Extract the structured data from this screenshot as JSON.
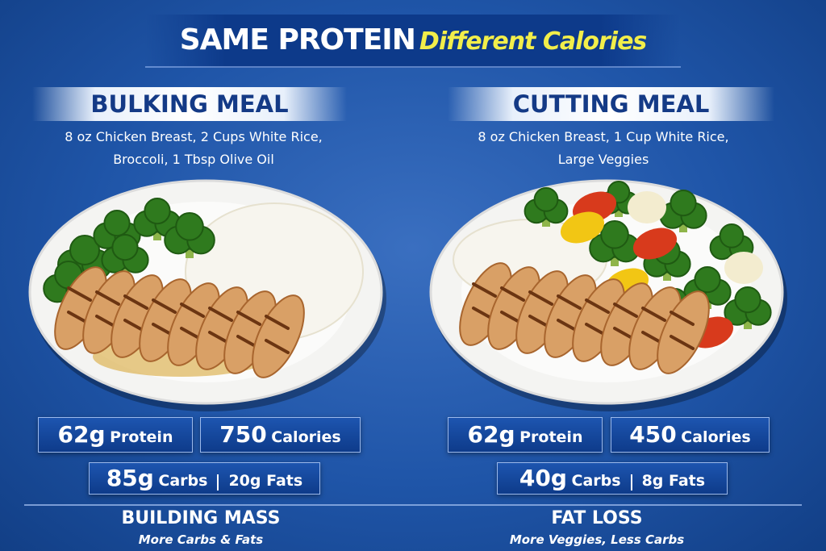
{
  "header": {
    "title": "SAME PROTEIN",
    "subtitle": "Different Calories"
  },
  "meals": [
    {
      "title": "BULKING MEAL",
      "description": [
        "8 oz Chicken Breast, 2 Cups White Rice,",
        "Broccoli, 1 Tbsp Olive Oil"
      ],
      "stats": [
        {
          "amount": "62g",
          "label": "Protein"
        },
        {
          "amount": "750",
          "label": "Calories"
        }
      ],
      "macros": {
        "carbs_amount": "85g",
        "carbs_label": "Carbs",
        "fats": "20g Fats"
      },
      "footer": {
        "title": "BUILDING MASS",
        "subtitle": "More Carbs & Fats"
      }
    },
    {
      "title": "CUTTING MEAL",
      "description": [
        "8 oz Chicken Breast, 1 Cup White Rice,",
        "Large Veggies"
      ],
      "stats": [
        {
          "amount": "62g",
          "label": "Protein"
        },
        {
          "amount": "450",
          "label": "Calories"
        }
      ],
      "macros": {
        "carbs_amount": "40g",
        "carbs_label": "Carbs",
        "fats": "8g Fats"
      },
      "footer": {
        "title": "FAT LOSS",
        "subtitle": "More Veggies, Less Carbs"
      }
    }
  ]
}
